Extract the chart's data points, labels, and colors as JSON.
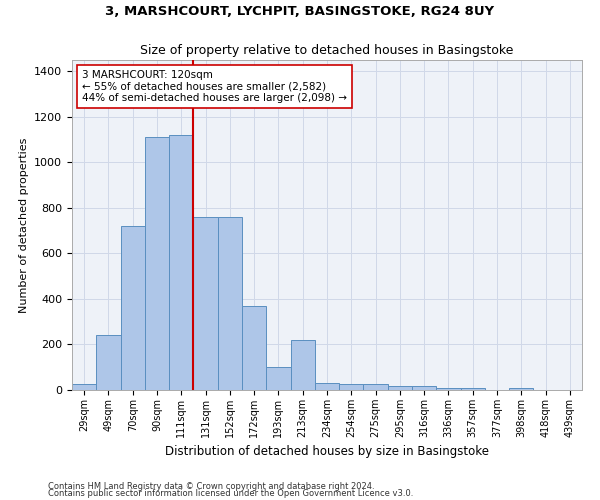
{
  "title": "3, MARSHCOURT, LYCHPIT, BASINGSTOKE, RG24 8UY",
  "subtitle": "Size of property relative to detached houses in Basingstoke",
  "xlabel": "Distribution of detached houses by size in Basingstoke",
  "ylabel": "Number of detached properties",
  "bar_labels": [
    "29sqm",
    "49sqm",
    "70sqm",
    "90sqm",
    "111sqm",
    "131sqm",
    "152sqm",
    "172sqm",
    "193sqm",
    "213sqm",
    "234sqm",
    "254sqm",
    "275sqm",
    "295sqm",
    "316sqm",
    "336sqm",
    "357sqm",
    "377sqm",
    "398sqm",
    "418sqm",
    "439sqm"
  ],
  "bar_values": [
    28,
    240,
    720,
    1110,
    1120,
    760,
    760,
    370,
    100,
    220,
    30,
    28,
    28,
    18,
    18,
    10,
    10,
    0,
    10,
    0,
    0
  ],
  "bar_color": "#aec6e8",
  "bar_edge_color": "#5a8fc0",
  "highlight_line_color": "#cc0000",
  "annotation_text": "3 MARSHCOURT: 120sqm\n← 55% of detached houses are smaller (2,582)\n44% of semi-detached houses are larger (2,098) →",
  "annotation_box_color": "#ffffff",
  "annotation_box_edge": "#cc0000",
  "ylim": [
    0,
    1450
  ],
  "yticks": [
    0,
    200,
    400,
    600,
    800,
    1000,
    1200,
    1400
  ],
  "grid_color": "#d0d8e8",
  "background_color": "#eef2f8",
  "footnote1": "Contains HM Land Registry data © Crown copyright and database right 2024.",
  "footnote2": "Contains public sector information licensed under the Open Government Licence v3.0."
}
